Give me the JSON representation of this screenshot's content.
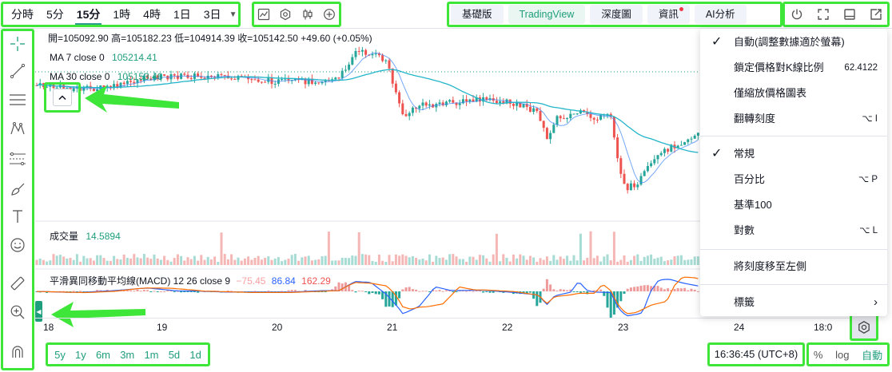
{
  "intervals": {
    "items": [
      "分時",
      "5分",
      "15分",
      "1時",
      "4時",
      "1日",
      "3日"
    ],
    "active_index": 2
  },
  "views": {
    "items": [
      "基礎版",
      "TradingView",
      "深度圖",
      "資訊",
      "AI分析"
    ],
    "active": "TradingView"
  },
  "legend": {
    "ohlc": "開=105092.90 高=105182.23 低=104914.39 收=105142.50 +49.60 (+0.05%)",
    "ma7_label": "MA 7 close 0",
    "ma7_value": "105214.41",
    "ma30_label": "MA 30 close 0",
    "ma30_value": "105153.46",
    "volume_label": "成交量",
    "volume_value": "14.5894",
    "macd_label": "平滑異同移動平均線(MACD) 12 26 close 9",
    "macd_hist": "−75.45",
    "macd_line": "86.84",
    "macd_signal": "162.29"
  },
  "time_axis": {
    "ticks": [
      "18",
      "19",
      "20",
      "21",
      "22",
      "23",
      "24",
      "18:0"
    ]
  },
  "ranges": [
    "5y",
    "1y",
    "6m",
    "3m",
    "1m",
    "5d",
    "1d"
  ],
  "clock": "16:36:45 (UTC+8)",
  "scale_options": [
    "%",
    "log",
    "自動"
  ],
  "menu": {
    "auto": "自動(調整數據適於螢幕)",
    "lock_ratio": "鎖定價格對K線比例",
    "lock_ratio_value": "62.4122",
    "scale_price_only": "僅縮放價格圖表",
    "invert": "翻轉刻度",
    "invert_shortcut": "⌥ I",
    "regular": "常規",
    "percent": "百分比",
    "percent_shortcut": "⌥ P",
    "indexed": "基準100",
    "log": "對數",
    "log_shortcut": "⌥ L",
    "move_left": "將刻度移至左側",
    "labels": "標籤"
  },
  "colors": {
    "accent": "#1e9e7c",
    "up": "#26a69a",
    "down": "#ef5350",
    "highlight": "#3ee63a"
  }
}
